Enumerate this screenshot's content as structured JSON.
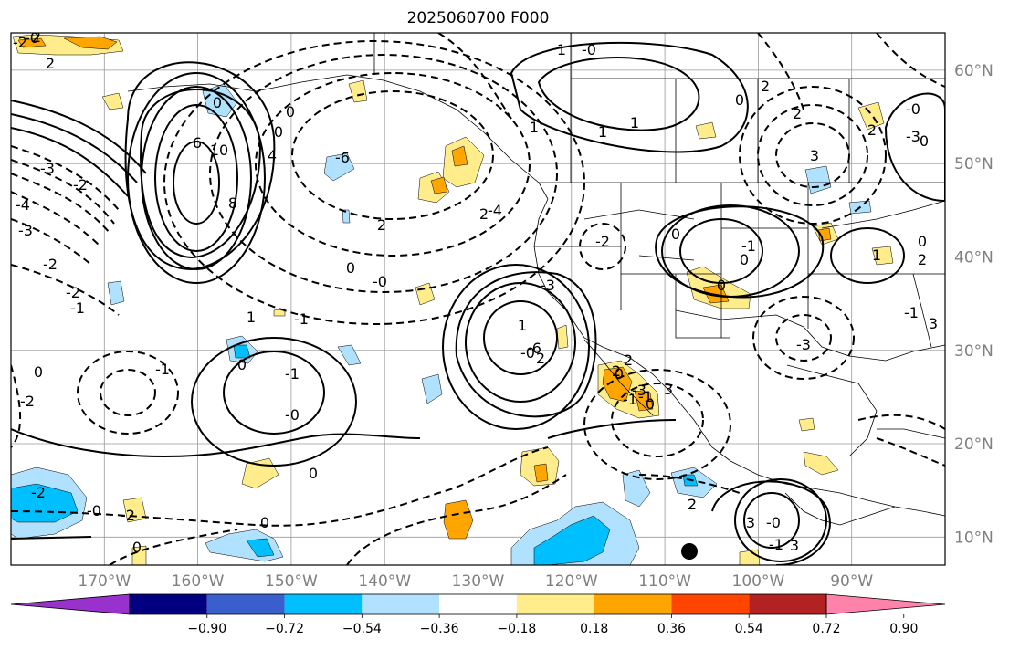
{
  "title": "2025060700 F000",
  "map": {
    "projection": "PlateCarree",
    "lon_range": [
      -180,
      -80
    ],
    "lat_range": [
      7,
      64
    ],
    "lat_ticks": [
      "60°N",
      "50°N",
      "40°N",
      "30°N",
      "20°N",
      "10°N"
    ],
    "lon_ticks": [
      "170°W",
      "160°W",
      "150°W",
      "140°W",
      "130°W",
      "120°W",
      "110°W",
      "100°W",
      "90°W"
    ],
    "gridlines": true,
    "contour_style": "solid positive, dashed negative, black",
    "contour_labels": [
      "2",
      "-0",
      "-2",
      "2",
      "0",
      "0",
      "4",
      "0",
      "6",
      "10",
      "8",
      "-3",
      "-2",
      "-4",
      "-3",
      "-2",
      "-6",
      "2",
      "-0",
      "0",
      "-2",
      "-1",
      "-1",
      "1",
      "-1",
      "0",
      "0",
      "-1",
      "-0",
      "-2",
      "1",
      "-0",
      "-6",
      "-4",
      "2",
      "-3",
      "-2",
      "0",
      "-1",
      "0",
      "0",
      "-3",
      "2",
      "1",
      "1",
      "-0",
      "1",
      "1",
      "0",
      "2",
      "2",
      "3",
      "2",
      "-3",
      "-0",
      "0",
      "0",
      "1",
      "2",
      "3",
      "-1",
      "2",
      "-3",
      "0",
      "-1",
      "2",
      "-1",
      "0",
      "0",
      "0",
      "0",
      "-2",
      "-0",
      "-2",
      "3",
      "-0",
      "-1",
      "3",
      "2",
      "3"
    ],
    "marker": {
      "shape": "dot",
      "color": "#000000"
    }
  },
  "colorbar": {
    "colors": [
      "#9932CC",
      "#000080",
      "#3A5FCD",
      "#00BFFF",
      "#B0E2FF",
      "#FFFFFF",
      "#FFEC8B",
      "#FFA500",
      "#FF4500",
      "#B22222",
      "#FF82AB"
    ],
    "tick_labels": [
      "−0.90",
      "−0.72",
      "−0.54",
      "−0.36",
      "−0.18",
      "0.18",
      "0.36",
      "0.54",
      "0.72",
      "0.90"
    ],
    "extend": "both"
  }
}
